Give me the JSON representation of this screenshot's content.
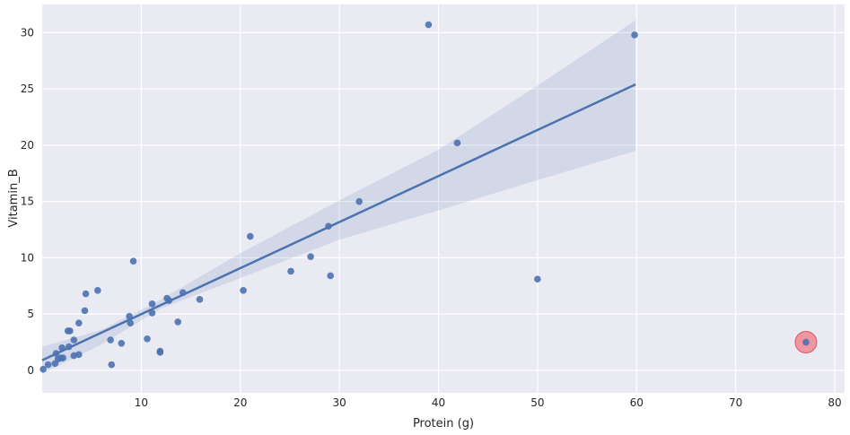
{
  "chart_data": {
    "type": "scatter",
    "xlabel": "Protein (g)",
    "ylabel": "Vitamin_B",
    "xlim": [
      0,
      81
    ],
    "ylim": [
      -2.0,
      32.5
    ],
    "xticks": [
      10,
      20,
      30,
      40,
      50,
      60,
      70,
      80
    ],
    "yticks": [
      0,
      5,
      10,
      15,
      20,
      25,
      30
    ],
    "grid": true,
    "background": "#eaeaf2",
    "point_color": "#4c72b0",
    "highlight_color": "#f07b86",
    "regression": {
      "x_range": [
        0,
        59.9
      ],
      "fit": [
        [
          0,
          0.9
        ],
        [
          59.9,
          25.4
        ]
      ],
      "ci_upper": [
        [
          0,
          2.1
        ],
        [
          6,
          3.6
        ],
        [
          12,
          6.3
        ],
        [
          20,
          10.4
        ],
        [
          30,
          15.1
        ],
        [
          40,
          19.6
        ],
        [
          50,
          25.3
        ],
        [
          59.9,
          31.1
        ]
      ],
      "ci_lower": [
        [
          0,
          -0.3
        ],
        [
          6,
          2.3
        ],
        [
          12,
          5.5
        ],
        [
          20,
          8.2
        ],
        [
          30,
          11.6
        ],
        [
          40,
          14.2
        ],
        [
          50,
          16.9
        ],
        [
          59.9,
          19.5
        ]
      ]
    },
    "points": [
      [
        0.1,
        0.1
      ],
      [
        0.6,
        0.5
      ],
      [
        1.3,
        0.6
      ],
      [
        1.4,
        1.5
      ],
      [
        1.6,
        1.0
      ],
      [
        1.9,
        1.1
      ],
      [
        2.1,
        1.1
      ],
      [
        2.0,
        2.0
      ],
      [
        2.6,
        3.5
      ],
      [
        2.8,
        3.5
      ],
      [
        2.7,
        2.1
      ],
      [
        3.2,
        1.3
      ],
      [
        3.2,
        2.7
      ],
      [
        3.7,
        1.4
      ],
      [
        3.7,
        4.2
      ],
      [
        4.3,
        5.3
      ],
      [
        4.4,
        6.8
      ],
      [
        5.6,
        7.1
      ],
      [
        6.9,
        2.7
      ],
      [
        7.0,
        0.5
      ],
      [
        8.0,
        2.4
      ],
      [
        8.8,
        4.8
      ],
      [
        8.9,
        4.2
      ],
      [
        9.2,
        9.7
      ],
      [
        10.6,
        2.8
      ],
      [
        11.1,
        5.9
      ],
      [
        11.1,
        5.1
      ],
      [
        11.9,
        1.7
      ],
      [
        11.9,
        1.6
      ],
      [
        12.6,
        6.4
      ],
      [
        12.8,
        6.2
      ],
      [
        13.7,
        4.3
      ],
      [
        14.2,
        6.9
      ],
      [
        15.9,
        6.3
      ],
      [
        20.3,
        7.1
      ],
      [
        21.0,
        11.9
      ],
      [
        25.1,
        8.8
      ],
      [
        27.1,
        10.1
      ],
      [
        28.9,
        12.8
      ],
      [
        29.1,
        8.4
      ],
      [
        32.0,
        15.0
      ],
      [
        39.0,
        30.7
      ],
      [
        41.9,
        20.2
      ],
      [
        50.0,
        8.1
      ],
      [
        59.8,
        29.8
      ]
    ],
    "highlighted_point": [
      77.1,
      2.5
    ]
  }
}
